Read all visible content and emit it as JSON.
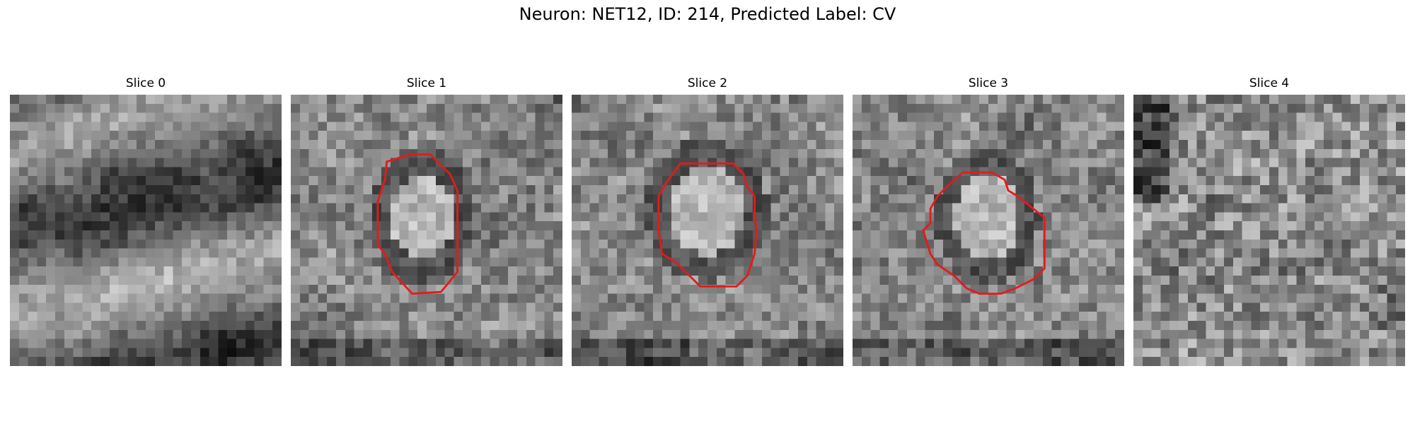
{
  "figure": {
    "title": "Neuron: NET12, ID: 214, Predicted Label: CV"
  },
  "slices": [
    {
      "title": "Slice 0",
      "has_contour": false,
      "seed": 11,
      "mode": "bands"
    },
    {
      "title": "Slice 1",
      "has_contour": true,
      "seed": 23,
      "mode": "cell"
    },
    {
      "title": "Slice 2",
      "has_contour": true,
      "seed": 37,
      "mode": "cell"
    },
    {
      "title": "Slice 3",
      "has_contour": true,
      "seed": 41,
      "mode": "cell"
    },
    {
      "title": "Slice 4",
      "has_contour": false,
      "seed": 53,
      "mode": "noise"
    }
  ],
  "colors": {
    "contour": "#e41a1c"
  }
}
